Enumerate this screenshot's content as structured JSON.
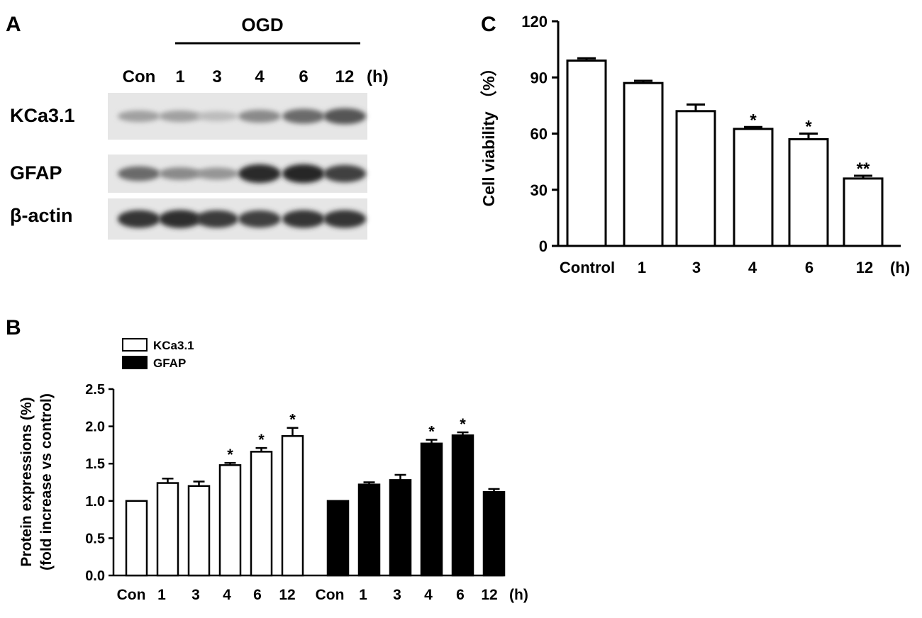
{
  "panel_a": {
    "letter": "A",
    "group_label": "OGD",
    "lanes": [
      "Con",
      "1",
      "3",
      "4",
      "6",
      "12"
    ],
    "unit": "(h)",
    "rows": [
      {
        "label": "KCa3.1",
        "intensity": [
          0.35,
          0.35,
          0.22,
          0.45,
          0.6,
          0.7
        ]
      },
      {
        "label": "GFAP",
        "intensity": [
          0.6,
          0.45,
          0.4,
          0.9,
          0.92,
          0.8
        ]
      },
      {
        "label": "β-actin",
        "intensity": [
          0.85,
          0.88,
          0.82,
          0.8,
          0.85,
          0.85
        ]
      }
    ]
  },
  "panel_b": {
    "letter": "B",
    "legend": [
      {
        "label": "KCa3.1",
        "fill": "#ffffff"
      },
      {
        "label": "GFAP",
        "fill": "#000000"
      }
    ]
  },
  "panel_c": {
    "letter": "C"
  },
  "chart_data": [
    {
      "type": "bar",
      "panel": "B",
      "ylabel": "Protein expressions (%)",
      "ylabel2": "(fold increase vs control)",
      "x_unit": "(h)",
      "ylim": [
        0,
        2.5
      ],
      "yticks": [
        "0.0",
        "0.5",
        "1.0",
        "1.5",
        "2.0",
        "2.5"
      ],
      "categories": [
        "Con",
        "1",
        "3",
        "4",
        "6",
        "12"
      ],
      "series": [
        {
          "name": "KCa3.1",
          "color": "#ffffff",
          "values": [
            1.0,
            1.24,
            1.2,
            1.48,
            1.66,
            1.87
          ],
          "errors": [
            0.0,
            0.06,
            0.06,
            0.03,
            0.05,
            0.11
          ],
          "marks": [
            "",
            "",
            "",
            "*",
            "*",
            "*"
          ]
        },
        {
          "name": "GFAP",
          "color": "#000000",
          "values": [
            1.0,
            1.22,
            1.28,
            1.77,
            1.88,
            1.12
          ],
          "errors": [
            0.0,
            0.03,
            0.07,
            0.05,
            0.04,
            0.04
          ],
          "marks": [
            "",
            "",
            "",
            "*",
            "*",
            ""
          ]
        }
      ]
    },
    {
      "type": "bar",
      "panel": "C",
      "ylabel": "Cell viability （%）",
      "x_unit": "(h)",
      "ylim": [
        0,
        120
      ],
      "yticks": [
        "0",
        "30",
        "60",
        "90",
        "120"
      ],
      "categories": [
        "Control",
        "1",
        "3",
        "4",
        "6",
        "12"
      ],
      "values": [
        99,
        87,
        72,
        62.5,
        57,
        36
      ],
      "errors": [
        1.2,
        1.2,
        3.5,
        1.0,
        3.0,
        1.5
      ],
      "marks": [
        "",
        "",
        "",
        "*",
        "*",
        "**"
      ]
    }
  ]
}
